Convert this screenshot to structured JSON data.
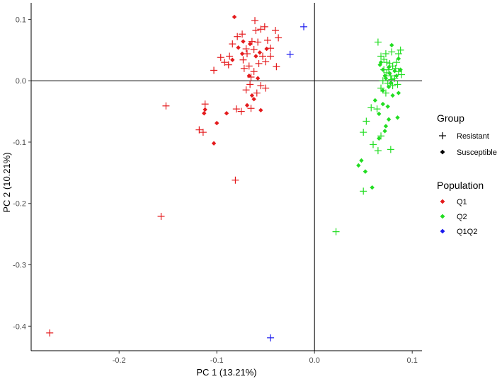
{
  "chart_data": {
    "type": "scatter",
    "xlabel": "PC 1 (13.21%)",
    "ylabel": "PC 2 (10.21%)",
    "xlim": [
      -0.29,
      0.11
    ],
    "ylim": [
      -0.44,
      0.127
    ],
    "x_ticks": [
      -0.2,
      -0.1,
      0.0,
      0.1
    ],
    "x_tick_labels": [
      "-0.2",
      "-0.1",
      "0.0",
      "0.1"
    ],
    "y_ticks": [
      0.1,
      0.0,
      -0.1,
      -0.2,
      -0.3,
      -0.4
    ],
    "y_tick_labels": [
      "0.1",
      "0.0",
      "-0.1",
      "-0.2",
      "-0.3",
      "-0.4"
    ],
    "reference_lines": {
      "x": 0.0,
      "y": 0.0
    },
    "grid": false,
    "legend": {
      "placement": "right",
      "group_title": "Group",
      "group_items": [
        {
          "label": "Resistant",
          "shape": "plus"
        },
        {
          "label": "Susceptible",
          "shape": "diamond"
        }
      ],
      "population_title": "Population",
      "population_items": [
        {
          "label": "Q1",
          "color": "#e41a1c"
        },
        {
          "label": "Q2",
          "color": "#22dd22"
        },
        {
          "label": "Q1Q2",
          "color": "#1a1aee"
        }
      ]
    },
    "colors": {
      "Q1": "#e41a1c",
      "Q2": "#22dd22",
      "Q1Q2": "#1a1aee"
    },
    "series": [
      {
        "population": "Q1",
        "group": "Resistant",
        "points": [
          [
            -0.096,
            0.038
          ],
          [
            -0.103,
            0.017
          ],
          [
            -0.092,
            0.03
          ],
          [
            -0.088,
            0.026
          ],
          [
            -0.084,
            0.06
          ],
          [
            -0.079,
            0.072
          ],
          [
            -0.074,
            0.076
          ],
          [
            -0.07,
            0.052
          ],
          [
            -0.064,
            0.064
          ],
          [
            -0.061,
            0.098
          ],
          [
            -0.055,
            0.084
          ],
          [
            -0.051,
            0.088
          ],
          [
            -0.048,
            0.066
          ],
          [
            -0.045,
            0.053
          ],
          [
            -0.04,
            0.082
          ],
          [
            -0.037,
            0.07
          ],
          [
            -0.039,
            0.023
          ],
          [
            -0.05,
            0.031
          ],
          [
            -0.057,
            0.028
          ],
          [
            -0.062,
            0.015
          ],
          [
            -0.065,
            0.006
          ],
          [
            -0.067,
            0.024
          ],
          [
            -0.069,
            0.044
          ],
          [
            -0.072,
            0.02
          ],
          [
            -0.055,
            -0.008
          ],
          [
            -0.059,
            -0.02
          ],
          [
            -0.066,
            -0.006
          ],
          [
            -0.07,
            -0.015
          ],
          [
            -0.05,
            -0.012
          ],
          [
            -0.08,
            -0.046
          ],
          [
            -0.075,
            -0.05
          ],
          [
            -0.065,
            -0.045
          ],
          [
            -0.112,
            -0.038
          ],
          [
            -0.118,
            -0.08
          ],
          [
            -0.114,
            -0.084
          ],
          [
            -0.152,
            -0.041
          ],
          [
            -0.081,
            -0.162
          ],
          [
            -0.157,
            -0.221
          ],
          [
            -0.271,
            -0.411
          ],
          [
            -0.058,
            0.063
          ],
          [
            -0.062,
            0.051
          ],
          [
            -0.053,
            0.04
          ],
          [
            -0.073,
            0.034
          ],
          [
            -0.045,
            0.04
          ],
          [
            -0.06,
            0.082
          ],
          [
            -0.087,
            0.04
          ]
        ]
      },
      {
        "population": "Q1",
        "group": "Susceptible",
        "points": [
          [
            -0.082,
            0.104
          ],
          [
            -0.073,
            0.064
          ],
          [
            -0.066,
            0.06
          ],
          [
            -0.06,
            0.04
          ],
          [
            -0.056,
            0.046
          ],
          [
            -0.058,
            0.004
          ],
          [
            -0.064,
            -0.024
          ],
          [
            -0.062,
            -0.03
          ],
          [
            -0.055,
            -0.048
          ],
          [
            -0.069,
            -0.04
          ],
          [
            -0.078,
            0.054
          ],
          [
            -0.074,
            0.044
          ],
          [
            -0.112,
            -0.047
          ],
          [
            -0.113,
            -0.053
          ],
          [
            -0.1,
            -0.069
          ],
          [
            -0.103,
            -0.102
          ],
          [
            -0.09,
            -0.053
          ],
          [
            -0.084,
            0.034
          ],
          [
            -0.049,
            0.052
          ],
          [
            -0.067,
            0.008
          ]
        ]
      },
      {
        "population": "Q2",
        "group": "Resistant",
        "points": [
          [
            0.065,
            0.063
          ],
          [
            0.068,
            0.04
          ],
          [
            0.071,
            0.035
          ],
          [
            0.074,
            0.03
          ],
          [
            0.077,
            0.028
          ],
          [
            0.08,
            0.024
          ],
          [
            0.083,
            0.02
          ],
          [
            0.086,
            0.015
          ],
          [
            0.089,
            0.01
          ],
          [
            0.071,
            0.018
          ],
          [
            0.074,
            0.013
          ],
          [
            0.078,
            0.008
          ],
          [
            0.082,
            0.004
          ],
          [
            0.07,
            0.0
          ],
          [
            0.075,
            -0.004
          ],
          [
            0.08,
            -0.008
          ],
          [
            0.085,
            -0.006
          ],
          [
            0.073,
            0.044
          ],
          [
            0.079,
            0.047
          ],
          [
            0.086,
            0.044
          ],
          [
            0.088,
            0.05
          ],
          [
            0.068,
            -0.012
          ],
          [
            0.073,
            -0.02
          ],
          [
            0.058,
            -0.044
          ],
          [
            0.064,
            -0.046
          ],
          [
            0.053,
            -0.066
          ],
          [
            0.05,
            -0.084
          ],
          [
            0.068,
            -0.09
          ],
          [
            0.06,
            -0.104
          ],
          [
            0.065,
            -0.114
          ],
          [
            0.078,
            -0.112
          ],
          [
            0.05,
            -0.18
          ],
          [
            0.022,
            -0.246
          ],
          [
            0.079,
            0.002
          ],
          [
            0.084,
            0.03
          ],
          [
            0.076,
            0.018
          ]
        ]
      },
      {
        "population": "Q2",
        "group": "Susceptible",
        "points": [
          [
            0.079,
            0.058
          ],
          [
            0.086,
            0.036
          ],
          [
            0.067,
            0.026
          ],
          [
            0.07,
            0.018
          ],
          [
            0.076,
            0.022
          ],
          [
            0.072,
            0.008
          ],
          [
            0.077,
            0.012
          ],
          [
            0.084,
            0.008
          ],
          [
            0.07,
            -0.016
          ],
          [
            0.076,
            -0.01
          ],
          [
            0.08,
            -0.024
          ],
          [
            0.086,
            -0.02
          ],
          [
            0.062,
            -0.032
          ],
          [
            0.07,
            -0.038
          ],
          [
            0.075,
            -0.042
          ],
          [
            0.066,
            -0.054
          ],
          [
            0.073,
            -0.074
          ],
          [
            0.076,
            -0.063
          ],
          [
            0.085,
            -0.06
          ],
          [
            0.072,
            -0.082
          ],
          [
            0.066,
            -0.094
          ],
          [
            0.045,
            -0.138
          ],
          [
            0.048,
            -0.13
          ],
          [
            0.052,
            -0.148
          ],
          [
            0.059,
            -0.174
          ],
          [
            0.082,
            0.016
          ],
          [
            0.073,
            0.004
          ],
          [
            0.078,
            -0.004
          ],
          [
            0.088,
            0.018
          ],
          [
            0.068,
            0.03
          ]
        ]
      },
      {
        "population": "Q1Q2",
        "group": "Resistant",
        "points": [
          [
            -0.011,
            0.088
          ],
          [
            -0.025,
            0.043
          ],
          [
            -0.045,
            -0.419
          ]
        ]
      }
    ]
  }
}
